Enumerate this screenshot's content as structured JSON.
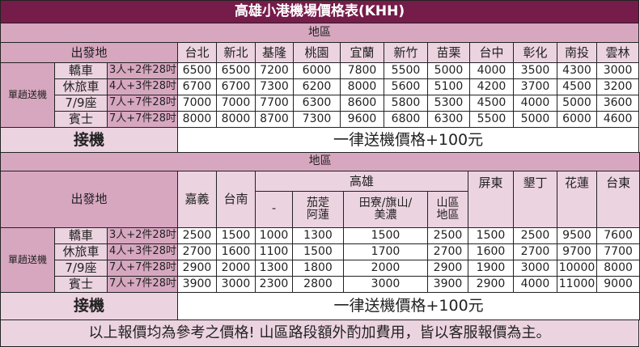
{
  "title": "高雄小港機場價格表(KHH)",
  "area_label": "地區",
  "origin_label": "出發地",
  "service_label": "單趟送機",
  "pickup_label": "接機",
  "pickup_note": "一律送機價格+100元",
  "vehicles": [
    {
      "name": "轎車",
      "capacity": "3人+2件28吋"
    },
    {
      "name": "休旅車",
      "capacity": "4人+3件28吋"
    },
    {
      "name": "7/9座",
      "capacity": "7人+7件28吋"
    },
    {
      "name": "賓士",
      "capacity": "7人+7件28吋"
    }
  ],
  "north": {
    "cities": [
      "台北",
      "新北",
      "基隆",
      "桃園",
      "宜蘭",
      "新竹",
      "苗栗",
      "台中",
      "彰化",
      "南投",
      "雲林"
    ],
    "prices": [
      [
        "6500",
        "6500",
        "7200",
        "6000",
        "7800",
        "5500",
        "5000",
        "4000",
        "3500",
        "4300",
        "3000"
      ],
      [
        "6700",
        "6700",
        "7300",
        "6200",
        "8000",
        "5600",
        "5100",
        "4200",
        "3700",
        "4500",
        "3200"
      ],
      [
        "7000",
        "7000",
        "7700",
        "6300",
        "8600",
        "5800",
        "5300",
        "4500",
        "4000",
        "5000",
        "3600"
      ],
      [
        "8000",
        "8000",
        "8700",
        "7300",
        "9600",
        "6800",
        "6300",
        "5500",
        "5000",
        "6000",
        "4600"
      ]
    ]
  },
  "south": {
    "cities": [
      "嘉義",
      "台南"
    ],
    "kaohsiung_label": "高雄",
    "kaohsiung_subs": [
      "-",
      "茄萣\n阿蓮",
      "田寮/旗山/\n美濃",
      "山區\n地區"
    ],
    "cities2": [
      "屏東",
      "墾丁",
      "花蓮",
      "台東"
    ],
    "prices": [
      [
        "2500",
        "1500",
        "1000",
        "1300",
        "1500",
        "2500",
        "1500",
        "2500",
        "9500",
        "7600"
      ],
      [
        "2700",
        "1600",
        "1100",
        "1500",
        "1700",
        "2700",
        "1600",
        "2700",
        "9700",
        "7700"
      ],
      [
        "2900",
        "2000",
        "1300",
        "1800",
        "2000",
        "2900",
        "1900",
        "3000",
        "10000",
        "8000"
      ],
      [
        "3900",
        "3000",
        "2300",
        "2800",
        "3000",
        "3900",
        "2900",
        "4000",
        "11000",
        "9000"
      ]
    ]
  },
  "footer": "以上報價均為參考之價格! 山區路段額外酌加費用，皆以客服報價為主。"
}
